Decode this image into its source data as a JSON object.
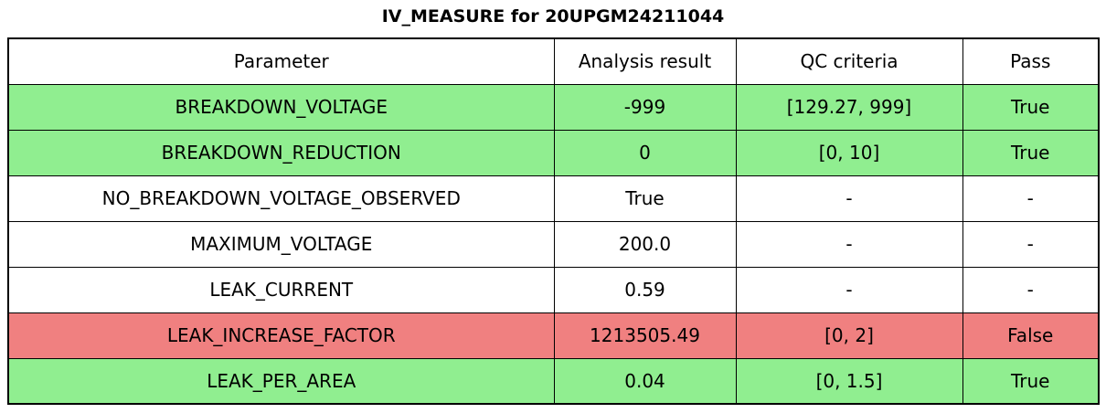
{
  "chart_data": {
    "type": "table",
    "title": "IV_MEASURE for 20UPGM24211044",
    "columns": [
      "Parameter",
      "Analysis result",
      "QC criteria",
      "Pass"
    ],
    "rows": [
      {
        "parameter": "BREAKDOWN_VOLTAGE",
        "analysis_result": "-999",
        "qc_criteria": "[129.27, 999]",
        "pass": "True",
        "status": "pass"
      },
      {
        "parameter": "BREAKDOWN_REDUCTION",
        "analysis_result": "0",
        "qc_criteria": "[0, 10]",
        "pass": "True",
        "status": "pass"
      },
      {
        "parameter": "NO_BREAKDOWN_VOLTAGE_OBSERVED",
        "analysis_result": "True",
        "qc_criteria": "-",
        "pass": "-",
        "status": "none"
      },
      {
        "parameter": "MAXIMUM_VOLTAGE",
        "analysis_result": "200.0",
        "qc_criteria": "-",
        "pass": "-",
        "status": "none"
      },
      {
        "parameter": "LEAK_CURRENT",
        "analysis_result": "0.59",
        "qc_criteria": "-",
        "pass": "-",
        "status": "none"
      },
      {
        "parameter": "LEAK_INCREASE_FACTOR",
        "analysis_result": "1213505.49",
        "qc_criteria": "[0, 2]",
        "pass": "False",
        "status": "fail"
      },
      {
        "parameter": "LEAK_PER_AREA",
        "analysis_result": "0.04",
        "qc_criteria": "[0, 1.5]",
        "pass": "True",
        "status": "pass"
      }
    ]
  },
  "colors": {
    "pass": "#90EE90",
    "fail": "#F08080",
    "none": "#FFFFFF",
    "header": "#FFFFFF",
    "border": "#000000"
  }
}
